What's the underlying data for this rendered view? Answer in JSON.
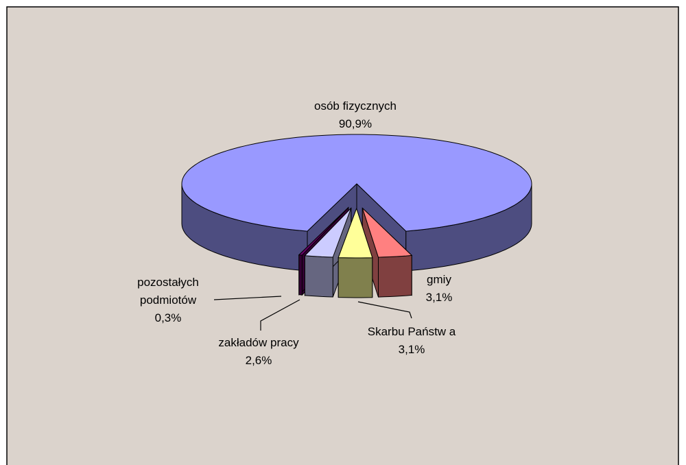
{
  "chart_data": {
    "type": "pie3d",
    "categories": [
      "osób fizycznych",
      "gmiy",
      "Skarbu Państw a",
      "zakładów pracy",
      "pozostałych podmiotów"
    ],
    "values": [
      90.9,
      3.1,
      3.1,
      2.6,
      0.3
    ],
    "value_labels": [
      "90,9%",
      "3,1%",
      "3,1%",
      "2,6%",
      "0,3%"
    ],
    "colors": [
      "#9999ff",
      "#ff8080",
      "#ffff99",
      "#ccccff",
      "#660066"
    ]
  }
}
